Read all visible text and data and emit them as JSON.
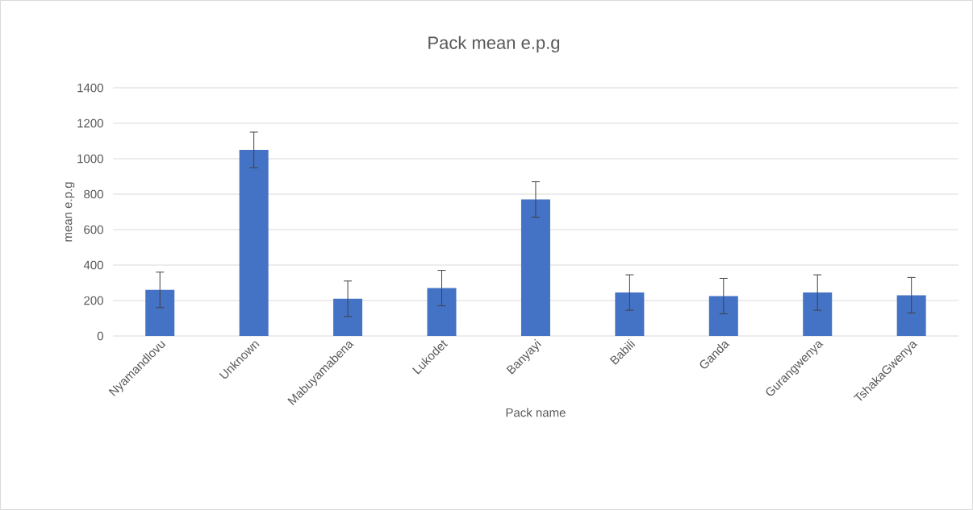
{
  "chart_data": {
    "type": "bar",
    "title": "Pack mean e.p.g",
    "xlabel": "Pack name",
    "ylabel": "mean e.p.g",
    "categories": [
      "Nyamandlovu",
      "Unknown",
      "Mabuyamabena",
      "Lukodet",
      "Banyayi",
      "Babili",
      "Ganda",
      "Gurangwenya",
      "TshakaGwenya"
    ],
    "values": [
      260,
      1050,
      210,
      270,
      770,
      245,
      225,
      245,
      230
    ],
    "errors": [
      100,
      100,
      100,
      100,
      100,
      100,
      100,
      100,
      100
    ],
    "color": "#4472c4",
    "ylim": [
      0,
      1400
    ],
    "yticks": [
      0,
      200,
      400,
      600,
      800,
      1000,
      1200,
      1400
    ],
    "grid": "y"
  }
}
